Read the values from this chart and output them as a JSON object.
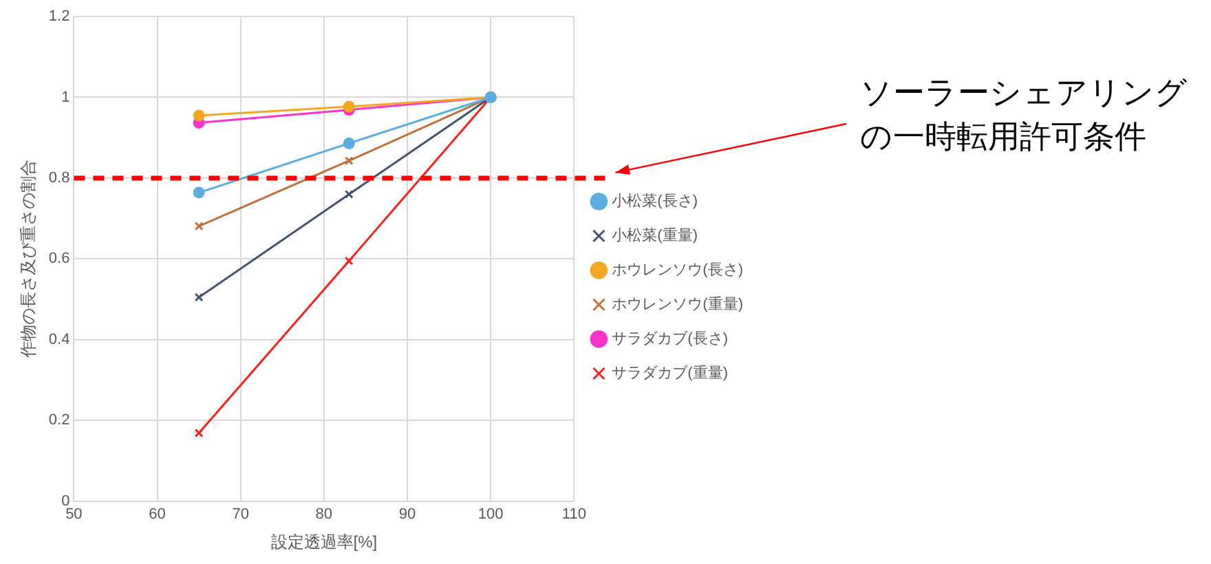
{
  "chart_data": {
    "type": "line",
    "xlabel": "設定透過率[%]",
    "ylabel": "作物の長さ及び重さの割合",
    "xlim": [
      50,
      110
    ],
    "xticks": [
      50,
      60,
      70,
      80,
      90,
      100,
      110
    ],
    "ylim": [
      0,
      1.2
    ],
    "yticks": [
      0,
      0.2,
      0.4,
      0.6,
      0.8,
      1,
      1.2
    ],
    "grid": true,
    "legend": "right",
    "line_style": "solid",
    "series": [
      {
        "name": "小松菜(長さ)",
        "color": "#5aaee0",
        "marker": "circle",
        "x": [
          65,
          83,
          100
        ],
        "values": [
          0.764,
          0.886,
          1
        ]
      },
      {
        "name": "小松菜(重量)",
        "color": "#44546a",
        "marker": "cross",
        "x": [
          65,
          83,
          100
        ],
        "values": [
          0.505,
          0.76,
          1
        ]
      },
      {
        "name": "ホウレンソウ(長さ)",
        "color": "#f5a623",
        "marker": "circle",
        "x": [
          65,
          83,
          100
        ],
        "values": [
          0.955,
          0.977,
          1
        ]
      },
      {
        "name": "ホウレンソウ(重量)",
        "color": "#c0703a",
        "marker": "cross",
        "x": [
          65,
          83,
          100
        ],
        "values": [
          0.681,
          0.843,
          1
        ]
      },
      {
        "name": "サラダカブ(長さ)",
        "color": "#ff33cc",
        "marker": "circle",
        "x": [
          65,
          83,
          100
        ],
        "values": [
          0.937,
          0.969,
          1
        ]
      },
      {
        "name": "サラダカブ(重量)",
        "color": "#ff2020",
        "marker": "cross",
        "x": [
          65,
          83,
          100
        ],
        "values": [
          0.169,
          0.595,
          1
        ]
      }
    ],
    "ref_lines": [
      {
        "axis": "y",
        "value": 0.8,
        "label": "ソーラーシェアリングの一時転用許可条件",
        "color": "#ff0000",
        "line_style": "dashed"
      }
    ]
  }
}
